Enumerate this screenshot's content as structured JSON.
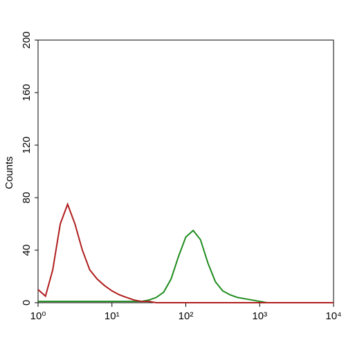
{
  "chart_data": {
    "type": "line",
    "ylabel": "Counts",
    "xscale": "log",
    "x": [
      1,
      1.26,
      1.58,
      2,
      2.51,
      3.16,
      3.98,
      5.01,
      6.31,
      7.94,
      10,
      12.6,
      15.8,
      20,
      25.1,
      31.6,
      39.8,
      50.1,
      63.1,
      79.4,
      100,
      126,
      158,
      200,
      251,
      316,
      398,
      501,
      631,
      794,
      1000,
      1260,
      1580,
      2000,
      2510,
      3160,
      3980,
      5010,
      6310,
      7940,
      10000
    ],
    "series": [
      {
        "color": "#b01c1c",
        "values": [
          10,
          5,
          25,
          60,
          75,
          60,
          40,
          25,
          18,
          13,
          9,
          6,
          4,
          2,
          1,
          1,
          0,
          0,
          0,
          0,
          0,
          0,
          0,
          0,
          0,
          0,
          0,
          0,
          0,
          0,
          0,
          0,
          0,
          0,
          0,
          0,
          0,
          0,
          0,
          0,
          0
        ]
      },
      {
        "color": "#1e8c1e",
        "values": [
          1,
          1,
          1,
          1,
          1,
          1,
          1,
          1,
          1,
          1,
          1,
          1,
          1,
          1,
          1,
          2,
          4,
          8,
          18,
          35,
          50,
          55,
          48,
          30,
          16,
          9,
          6,
          4,
          3,
          2,
          1,
          0,
          0,
          0,
          0,
          0,
          0,
          0,
          0,
          0,
          0
        ]
      }
    ],
    "xlim": [
      1,
      10000
    ],
    "xticks": [
      {
        "value": 1,
        "label": "10⁰"
      },
      {
        "value": 10,
        "label": "10¹"
      },
      {
        "value": 100,
        "label": "10²"
      },
      {
        "value": 1000,
        "label": "10³"
      },
      {
        "value": 10000,
        "label": "10⁴"
      }
    ],
    "ylim": [
      0,
      200
    ],
    "yticks": [
      0,
      40,
      80,
      120,
      160,
      200
    ]
  }
}
